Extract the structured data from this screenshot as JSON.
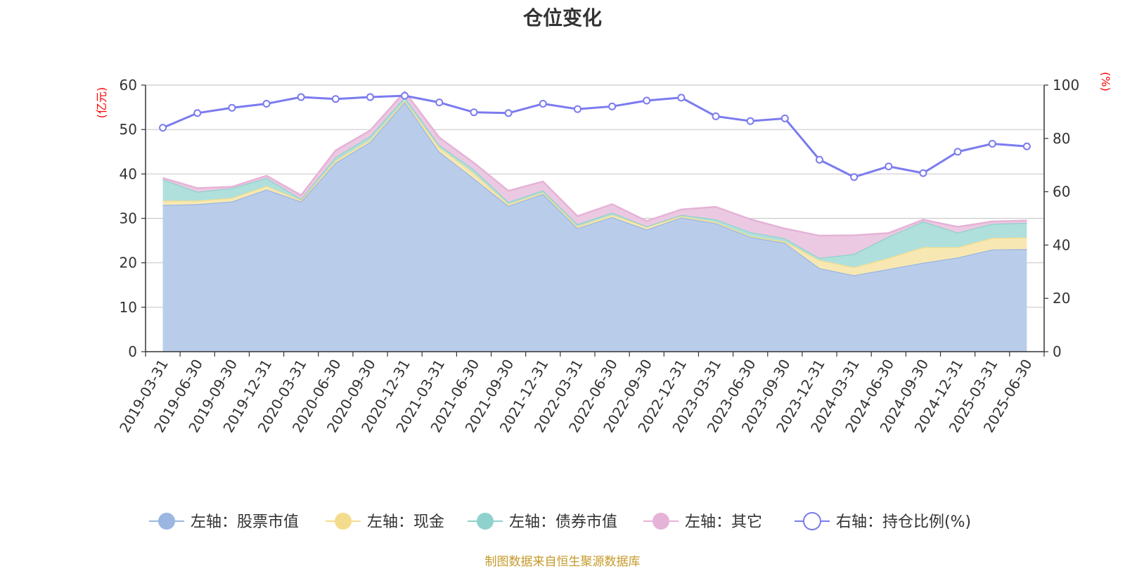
{
  "chart_data": {
    "type": "area",
    "title": "仓位变化",
    "left_axis_unit": "(亿元)",
    "right_axis_unit": "(%)",
    "ylim_left": [
      0,
      60
    ],
    "yticks_left": [
      0,
      10,
      20,
      30,
      40,
      50,
      60
    ],
    "ylim_right": [
      0,
      100
    ],
    "yticks_right": [
      0,
      20,
      40,
      60,
      80,
      100
    ],
    "grid": true,
    "legend_position": "bottom",
    "x": [
      "2019-03-31",
      "2019-06-30",
      "2019-09-30",
      "2019-12-31",
      "2020-03-31",
      "2020-06-30",
      "2020-09-30",
      "2020-12-31",
      "2021-03-31",
      "2021-06-30",
      "2021-09-30",
      "2021-12-31",
      "2022-03-31",
      "2022-06-30",
      "2022-09-30",
      "2022-12-31",
      "2023-03-31",
      "2023-06-30",
      "2023-09-30",
      "2023-12-31",
      "2024-03-31",
      "2024-06-30",
      "2024-09-30",
      "2024-12-31",
      "2025-03-31",
      "2025-06-30"
    ],
    "series": [
      {
        "name": "左轴：股票市值",
        "axis": "left",
        "stacked": true,
        "color": "#9bb6e0",
        "fill": "#b9cdeb",
        "values": [
          33.0,
          33.2,
          33.8,
          36.5,
          33.8,
          42.5,
          47.2,
          56.2,
          45.0,
          39.0,
          32.8,
          35.5,
          27.8,
          30.3,
          27.5,
          30.2,
          28.9,
          25.8,
          24.5,
          18.8,
          17.2,
          18.6,
          20.0,
          21.2,
          23.0,
          23.1
        ]
      },
      {
        "name": "左轴：现金",
        "axis": "left",
        "stacked": true,
        "color": "#f5dc8c",
        "fill": "#f7e8b3",
        "values": [
          1.0,
          0.8,
          0.8,
          0.8,
          0.3,
          0.5,
          0.5,
          0.3,
          1.0,
          1.2,
          0.4,
          0.3,
          0.4,
          0.5,
          0.7,
          0.3,
          0.3,
          0.2,
          0.3,
          1.8,
          1.8,
          2.5,
          3.5,
          2.3,
          2.6,
          2.6
        ]
      },
      {
        "name": "左轴：债券市值",
        "axis": "left",
        "stacked": true,
        "color": "#8fd1cd",
        "fill": "#b0e0dc",
        "values": [
          4.8,
          2.0,
          2.2,
          1.8,
          0.3,
          0.8,
          0.8,
          0.8,
          0.5,
          0.8,
          0.5,
          0.5,
          0.5,
          0.5,
          0.0,
          0.3,
          0.6,
          0.9,
          0.7,
          0.5,
          3.0,
          4.8,
          5.8,
          3.3,
          3.2,
          3.3
        ]
      },
      {
        "name": "左轴：其它",
        "axis": "left",
        "stacked": true,
        "color": "#e5b3d7",
        "fill": "#ecc9e2",
        "values": [
          0.3,
          0.8,
          0.3,
          0.5,
          0.8,
          1.5,
          1.3,
          1.2,
          1.7,
          1.5,
          2.5,
          2.0,
          1.8,
          1.9,
          1.2,
          1.2,
          2.8,
          2.9,
          2.2,
          5.0,
          4.2,
          0.8,
          0.4,
          1.3,
          0.5,
          0.5
        ]
      },
      {
        "name": "右轴：持仓比例(%)",
        "axis": "right",
        "stacked": false,
        "color": "#7b7bf0",
        "fill": "#ffffff",
        "values": [
          84.0,
          89.5,
          91.5,
          93.0,
          95.5,
          94.8,
          95.5,
          96.0,
          93.5,
          89.8,
          89.5,
          93.0,
          91.0,
          92.0,
          94.2,
          95.3,
          88.3,
          86.5,
          87.5,
          72.0,
          65.5,
          69.5,
          67.0,
          75.0,
          78.0,
          77.0
        ]
      }
    ],
    "source": "制图数据来自恒生聚源数据库"
  }
}
